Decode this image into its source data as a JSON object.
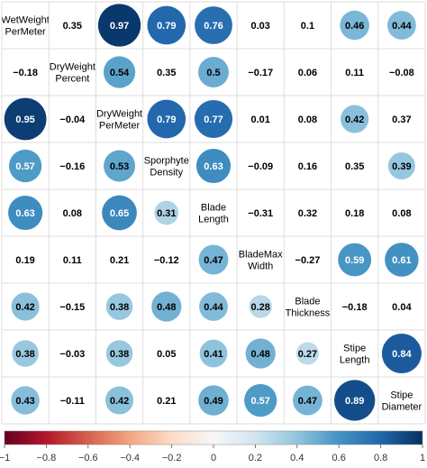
{
  "chart_data": {
    "type": "heatmap",
    "variables": [
      [
        "WetWeight",
        "PerMeter"
      ],
      [
        "DryWeight",
        "Percent"
      ],
      [
        "DryWeight",
        "PerMeter"
      ],
      [
        "Sporphyte",
        "Density"
      ],
      [
        "Blade",
        "Length"
      ],
      [
        "BladeMax",
        "Width"
      ],
      [
        "Blade",
        "Thickness"
      ],
      [
        "Stipe",
        "Length"
      ],
      [
        "Stipe",
        "Diameter"
      ]
    ],
    "matrix": [
      [
        null,
        0.35,
        0.97,
        0.79,
        0.76,
        0.03,
        0.1,
        0.46,
        0.44
      ],
      [
        -0.18,
        null,
        0.54,
        0.35,
        0.5,
        -0.17,
        0.06,
        0.11,
        -0.08
      ],
      [
        0.95,
        -0.04,
        null,
        0.79,
        0.77,
        0.01,
        0.08,
        0.42,
        0.37
      ],
      [
        0.57,
        -0.16,
        0.53,
        null,
        0.63,
        -0.09,
        0.16,
        0.35,
        0.39
      ],
      [
        0.63,
        0.08,
        0.65,
        0.31,
        null,
        -0.31,
        0.32,
        0.18,
        0.08
      ],
      [
        0.19,
        0.11,
        0.21,
        -0.12,
        0.47,
        null,
        -0.27,
        0.59,
        0.61
      ],
      [
        0.42,
        -0.15,
        0.38,
        0.48,
        0.44,
        0.28,
        null,
        -0.18,
        0.04
      ],
      [
        0.38,
        -0.03,
        0.38,
        0.05,
        0.41,
        0.48,
        0.27,
        null,
        0.84
      ],
      [
        0.43,
        -0.11,
        0.42,
        0.21,
        0.49,
        0.57,
        0.47,
        0.89,
        null
      ]
    ],
    "lower_triangle_style": "circle",
    "upper_triangle_style": "circle-or-number",
    "upper_numbers_only": [
      [
        0,
        1
      ],
      [
        0,
        5
      ],
      [
        0,
        6
      ],
      [
        1,
        3
      ],
      [
        1,
        5
      ],
      [
        1,
        6
      ],
      [
        1,
        7
      ],
      [
        1,
        8
      ],
      [
        2,
        5
      ],
      [
        2,
        6
      ],
      [
        2,
        8
      ],
      [
        3,
        5
      ],
      [
        3,
        6
      ],
      [
        3,
        7
      ],
      [
        4,
        5
      ],
      [
        4,
        6
      ],
      [
        4,
        7
      ],
      [
        4,
        8
      ],
      [
        5,
        6
      ],
      [
        6,
        7
      ],
      [
        6,
        8
      ]
    ],
    "lower_numbers_only": [
      [
        1,
        0
      ],
      [
        2,
        1
      ],
      [
        3,
        1
      ],
      [
        4,
        1
      ],
      [
        5,
        0
      ],
      [
        5,
        1
      ],
      [
        5,
        2
      ],
      [
        5,
        3
      ],
      [
        6,
        1
      ],
      [
        7,
        1
      ],
      [
        7,
        3
      ],
      [
        8,
        1
      ],
      [
        8,
        3
      ]
    ],
    "colorbar": {
      "range": [
        -1,
        1
      ],
      "ticks": [
        "-1",
        "-0.8",
        "-0.6",
        "-0.4",
        "-0.2",
        "0",
        "0.2",
        "0.4",
        "0.6",
        "0.8",
        "1"
      ],
      "colors": [
        "#67001f",
        "#b2182b",
        "#d6604d",
        "#f4a582",
        "#fddbc7",
        "#f7f7f7",
        "#d1e5f0",
        "#92c5de",
        "#4393c3",
        "#2166ac",
        "#053061"
      ]
    },
    "grid": true
  }
}
